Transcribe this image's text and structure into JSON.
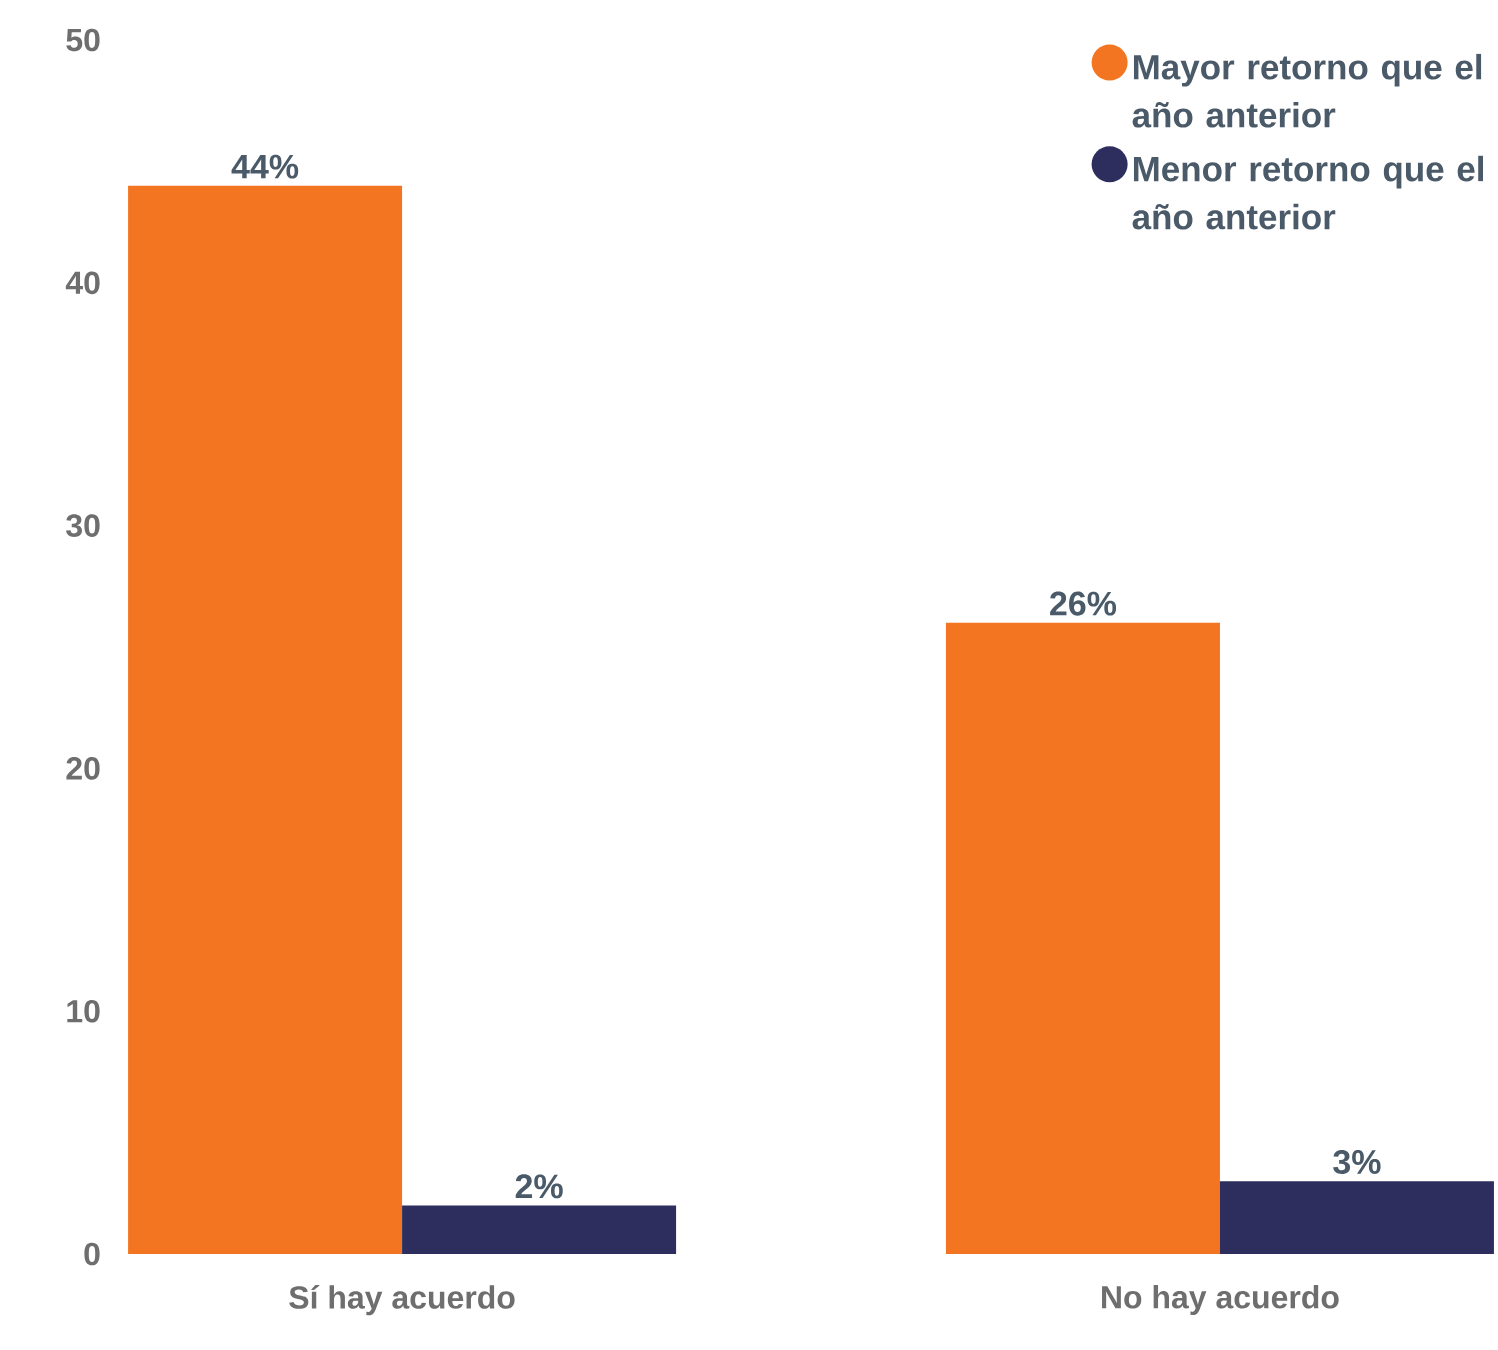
{
  "chart_data": {
    "type": "bar",
    "categories": [
      "Sí hay acuerdo",
      "No hay acuerdo"
    ],
    "series": [
      {
        "name": "Mayor retorno que el año anterior",
        "color": "#f37521",
        "values": [
          44,
          26
        ],
        "value_labels": [
          "44%",
          "26%"
        ]
      },
      {
        "name": "Menor retorno que el año anterior",
        "color": "#2e2e5e",
        "values": [
          2,
          3
        ],
        "value_labels": [
          "2%",
          "3%"
        ]
      }
    ],
    "ylim": [
      0,
      50
    ],
    "yticks": [
      0,
      10,
      20,
      30,
      40,
      50
    ],
    "grid": false,
    "legend": "top right"
  }
}
